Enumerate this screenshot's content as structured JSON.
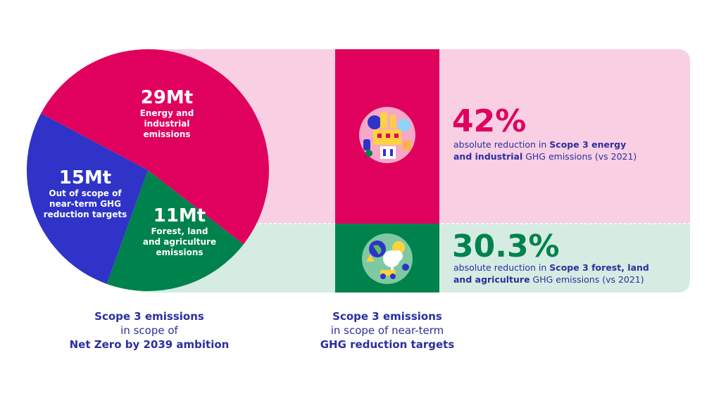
{
  "colors": {
    "magenta": "#e0005e",
    "pink_bg": "#f8cfe3",
    "green": "#00824d",
    "green_bg": "#d5ece2",
    "blue": "#2f33c7",
    "navy_text": "#2b2f9f"
  },
  "chart_data": {
    "type": "pie",
    "unit": "Mt",
    "slices": [
      {
        "value": 29,
        "label": "29Mt",
        "name": "Energy and industrial emissions",
        "lines": [
          "Energy and",
          "industrial",
          "emissions"
        ],
        "color": "#e0005e"
      },
      {
        "value": 11,
        "label": "11Mt",
        "name": "Forest, land and agriculture emissions",
        "lines": [
          "Forest, land",
          "and agriculture",
          "emissions"
        ],
        "color": "#00824d"
      },
      {
        "value": 15,
        "label": "15Mt",
        "name": "Out of scope of near-term GHG reduction targets",
        "lines": [
          "Out of scope of",
          "near-term GHG",
          "reduction targets"
        ],
        "color": "#2f33c7"
      }
    ]
  },
  "targets": [
    {
      "percent": "42%",
      "text_pre": "absolute reduction in ",
      "text_bold1": "Scope 3 energy",
      "text_break_bold": "and industrial",
      "text_post": " GHG emissions (vs 2021)",
      "color": "#e0005e",
      "icon": "energy-industry-icon"
    },
    {
      "percent": "30.3%",
      "text_pre": "absolute reduction in ",
      "text_bold1": "Scope 3 forest, land",
      "text_break_bold": "and agriculture",
      "text_post": " GHG emissions (vs 2021)",
      "color": "#00824d",
      "icon": "forest-agriculture-icon"
    }
  ],
  "captions": {
    "left": {
      "line1": "Scope 3 emissions",
      "line2": "in scope of",
      "line3": "Net Zero by 2039 ambition"
    },
    "right": {
      "line1": "Scope 3 emissions",
      "line2": "in scope of near-term",
      "line3": "GHG reduction targets"
    }
  }
}
